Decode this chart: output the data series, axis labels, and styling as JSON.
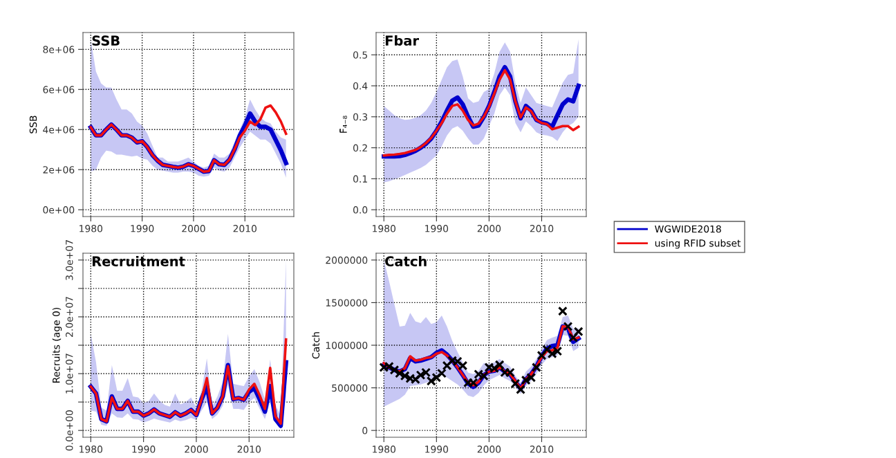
{
  "chart_data": [
    {
      "type": "line",
      "title": "SSB",
      "ylabel": "SSB",
      "x": [
        1980,
        1981,
        1982,
        1983,
        1984,
        1985,
        1986,
        1987,
        1988,
        1989,
        1990,
        1991,
        1992,
        1993,
        1994,
        1995,
        1996,
        1997,
        1998,
        1999,
        2000,
        2001,
        2002,
        2003,
        2004,
        2005,
        2006,
        2007,
        2008,
        2009,
        2010,
        2011,
        2012,
        2013,
        2014,
        2015,
        2016,
        2017,
        2018
      ],
      "xlim": [
        1978.48,
        2019.52
      ],
      "xticks": [
        1980,
        1990,
        2000,
        2010
      ],
      "ylim": [
        -340000,
        8840000
      ],
      "yticks": [
        {
          "value": 0,
          "label": "0e+00"
        },
        {
          "value": 2000000,
          "label": "2e+06"
        },
        {
          "value": 4000000,
          "label": "4e+06"
        },
        {
          "value": 6000000,
          "label": "6e+06"
        },
        {
          "value": 8000000,
          "label": "8e+06"
        }
      ],
      "grid": true,
      "line_style": "solid",
      "legend": false,
      "series": [
        {
          "color": "#0000cc",
          "values": [
            4110000,
            3710000,
            3710000,
            4000000,
            4250000,
            4000000,
            3710000,
            3710000,
            3600000,
            3360000,
            3420000,
            3130000,
            2730000,
            2450000,
            2240000,
            2190000,
            2140000,
            2100000,
            2150000,
            2270000,
            2190000,
            2040000,
            1900000,
            1930000,
            2470000,
            2270000,
            2240000,
            2500000,
            3020000,
            3700000,
            4200000,
            4800000,
            4400000,
            4140000,
            4140000,
            4000000,
            3480000,
            2960000,
            2330000
          ],
          "lower": [
            1900000,
            2000000,
            2600000,
            2950000,
            2900000,
            2750000,
            2750000,
            2700000,
            2650000,
            2700000,
            2550000,
            2500000,
            2200000,
            2000000,
            1950000,
            1900000,
            1850000,
            1850000,
            1900000,
            1900000,
            1850000,
            1700000,
            1650000,
            1700000,
            2100000,
            1950000,
            1900000,
            2100000,
            2600000,
            3100000,
            3500000,
            3900000,
            3700000,
            3500000,
            3500000,
            3300000,
            2800000,
            2300000,
            1600000
          ],
          "upper": [
            8500000,
            6900000,
            6300000,
            6100000,
            6100000,
            5500000,
            5000000,
            5000000,
            4800000,
            4400000,
            4200000,
            3800000,
            3200000,
            2600000,
            2600000,
            2400000,
            2400000,
            2400000,
            2500000,
            2600000,
            2400000,
            2200000,
            2100000,
            2200000,
            2800000,
            2600000,
            2600000,
            2800000,
            3400000,
            4000000,
            4600000,
            5500000,
            5000000,
            4600000,
            4400000,
            4300000,
            3900000,
            3600000,
            3500000
          ]
        },
        {
          "color": "#ee1111",
          "values": [
            4110000,
            3710000,
            3710000,
            4000000,
            4250000,
            4000000,
            3710000,
            3710000,
            3600000,
            3360000,
            3420000,
            3130000,
            2730000,
            2450000,
            2240000,
            2190000,
            2140000,
            2100000,
            2150000,
            2270000,
            2190000,
            2040000,
            1900000,
            1930000,
            2470000,
            2270000,
            2240000,
            2500000,
            3020000,
            3600000,
            3940000,
            4400000,
            4220000,
            4510000,
            5090000,
            5200000,
            4860000,
            4400000,
            3790000
          ]
        }
      ]
    },
    {
      "type": "line",
      "title": "Fbar",
      "ylabel": "F̄₄₋₈",
      "x": [
        1980,
        1981,
        1982,
        1983,
        1984,
        1985,
        1986,
        1987,
        1988,
        1989,
        1990,
        1991,
        1992,
        1993,
        1994,
        1995,
        1996,
        1997,
        1998,
        1999,
        2000,
        2001,
        2002,
        2003,
        2004,
        2005,
        2006,
        2007,
        2008,
        2009,
        2010,
        2011,
        2012,
        2013,
        2014,
        2015,
        2016,
        2017
      ],
      "xlim": [
        1978.52,
        2018.48
      ],
      "xticks": [
        1980,
        1990,
        2000,
        2010
      ],
      "ylim": [
        -0.022,
        0.572
      ],
      "yticks": [
        {
          "value": 0,
          "label": "0.0"
        },
        0.1,
        0.2,
        0.3,
        0.4,
        0.5
      ],
      "grid": true,
      "line_style": "solid",
      "legend": "bottom right",
      "series": [
        {
          "name": "WGWIDE2018",
          "color": "#0000cc",
          "values": [
            0.172,
            0.172,
            0.172,
            0.173,
            0.177,
            0.183,
            0.19,
            0.2,
            0.213,
            0.23,
            0.255,
            0.285,
            0.32,
            0.352,
            0.362,
            0.34,
            0.3,
            0.268,
            0.272,
            0.3,
            0.335,
            0.38,
            0.43,
            0.46,
            0.43,
            0.35,
            0.295,
            0.335,
            0.32,
            0.29,
            0.282,
            0.278,
            0.268,
            0.305,
            0.34,
            0.356,
            0.35,
            0.4
          ],
          "lower": [
            0.088,
            0.092,
            0.098,
            0.105,
            0.112,
            0.12,
            0.127,
            0.135,
            0.145,
            0.16,
            0.175,
            0.205,
            0.24,
            0.262,
            0.27,
            0.255,
            0.23,
            0.21,
            0.21,
            0.23,
            0.27,
            0.31,
            0.37,
            0.395,
            0.37,
            0.28,
            0.25,
            0.285,
            0.27,
            0.25,
            0.242,
            0.24,
            0.235,
            0.222,
            0.25,
            0.27,
            0.28,
            0.3
          ],
          "upper": [
            0.335,
            0.32,
            0.305,
            0.295,
            0.29,
            0.292,
            0.297,
            0.305,
            0.32,
            0.345,
            0.38,
            0.42,
            0.46,
            0.48,
            0.485,
            0.43,
            0.36,
            0.345,
            0.35,
            0.38,
            0.39,
            0.44,
            0.51,
            0.54,
            0.51,
            0.41,
            0.345,
            0.395,
            0.37,
            0.345,
            0.34,
            0.335,
            0.33,
            0.37,
            0.41,
            0.435,
            0.44,
            0.55
          ]
        },
        {
          "name": "using RFID subset",
          "color": "#ee1111",
          "values": [
            0.175,
            0.177,
            0.178,
            0.18,
            0.183,
            0.188,
            0.193,
            0.202,
            0.215,
            0.232,
            0.255,
            0.28,
            0.31,
            0.335,
            0.34,
            0.32,
            0.29,
            0.272,
            0.278,
            0.3,
            0.333,
            0.375,
            0.42,
            0.45,
            0.42,
            0.35,
            0.298,
            0.33,
            0.318,
            0.29,
            0.28,
            0.276,
            0.26,
            0.265,
            0.27,
            0.27,
            0.257,
            0.268
          ]
        }
      ]
    },
    {
      "type": "line",
      "title": "Recruitment",
      "ylabel": "Recruits (age 0)",
      "x": [
        1980,
        1981,
        1982,
        1983,
        1984,
        1985,
        1986,
        1987,
        1988,
        1989,
        1990,
        1991,
        1992,
        1993,
        1994,
        1995,
        1996,
        1997,
        1998,
        1999,
        2000,
        2001,
        2002,
        2003,
        2004,
        2005,
        2006,
        2007,
        2008,
        2009,
        2010,
        2011,
        2012,
        2013,
        2014,
        2015,
        2016,
        2017
      ],
      "xlim": [
        1978.52,
        2018.48
      ],
      "xticks": [
        1980,
        1990,
        2000,
        2010
      ],
      "ylim": [
        -1200000,
        31200000
      ],
      "yticks": [
        {
          "value": 0,
          "label": "0.0e+00"
        },
        {
          "value": 5000000,
          "label": null
        },
        {
          "value": 10000000,
          "label": "1.0e+07"
        },
        {
          "value": 15000000,
          "label": null
        },
        {
          "value": 20000000,
          "label": "2.0e+07"
        },
        {
          "value": 25000000,
          "label": null
        },
        {
          "value": 30000000,
          "label": "3.0e+07"
        }
      ],
      "grid": true,
      "line_style": "solid",
      "legend": false,
      "series": [
        {
          "color": "#0000cc",
          "values": [
            7700000,
            6500000,
            2000000,
            1600000,
            6000000,
            3800000,
            3800000,
            5200000,
            3300000,
            3300000,
            2600000,
            3000000,
            3700000,
            3000000,
            2700000,
            2400000,
            3200000,
            2600000,
            3000000,
            3600000,
            2700000,
            5500000,
            7800000,
            3000000,
            4000000,
            6000000,
            11500000,
            5500000,
            5700000,
            5400000,
            6800000,
            7500000,
            5500000,
            3300000,
            7800000,
            2000000,
            800000,
            12000000
          ],
          "lower": [
            3500000,
            3300000,
            1000000,
            800000,
            3000000,
            2300000,
            2200000,
            3000000,
            2000000,
            1900000,
            1400000,
            1700000,
            2100000,
            1800000,
            1600000,
            1400000,
            1900000,
            1600000,
            1800000,
            2200000,
            1800000,
            3500000,
            5000000,
            2000000,
            2800000,
            4300000,
            8000000,
            3800000,
            3800000,
            3600000,
            5000000,
            5700000,
            3800000,
            2000000,
            5000000,
            1500000,
            400000,
            6000000
          ],
          "upper": [
            17000000,
            12000000,
            4000000,
            3500000,
            11500000,
            7000000,
            7000000,
            9200000,
            6000000,
            5800000,
            4800000,
            5200000,
            6500000,
            5300000,
            4500000,
            4200000,
            6500000,
            4600000,
            5000000,
            5800000,
            4000000,
            7000000,
            12700000,
            4200000,
            6000000,
            8500000,
            17000000,
            8200000,
            8000000,
            7800000,
            9500000,
            10800000,
            8500000,
            5500000,
            12500000,
            4500000,
            2500000,
            30000000
          ]
        },
        {
          "color": "#ee1111",
          "values": [
            7700000,
            6500000,
            2000000,
            1600000,
            5800000,
            3800000,
            3800000,
            5200000,
            3300000,
            3300000,
            2600000,
            3000000,
            3700000,
            3000000,
            2700000,
            2400000,
            3200000,
            2600000,
            3000000,
            3600000,
            2700000,
            5500000,
            9200000,
            3000000,
            4000000,
            6000000,
            11300000,
            5500000,
            5700000,
            5400000,
            7200000,
            8200000,
            6200000,
            3800000,
            11000000,
            2500000,
            1200000,
            16000000
          ]
        }
      ]
    },
    {
      "type": "line",
      "title": "Catch",
      "ylabel": "Catch",
      "x": [
        1980,
        1981,
        1982,
        1983,
        1984,
        1985,
        1986,
        1987,
        1988,
        1989,
        1990,
        1991,
        1992,
        1993,
        1994,
        1995,
        1996,
        1997,
        1998,
        1999,
        2000,
        2001,
        2002,
        2003,
        2004,
        2005,
        2006,
        2007,
        2008,
        2009,
        2010,
        2011,
        2012,
        2013,
        2014,
        2015,
        2016,
        2017
      ],
      "xlim": [
        1978.52,
        2018.48
      ],
      "xticks": [
        1980,
        1990,
        2000,
        2010
      ],
      "ylim": [
        -80000,
        2080000
      ],
      "yticks": [
        0,
        500000,
        1000000,
        1500000,
        2000000
      ],
      "grid": true,
      "line_style": "solid",
      "legend": false,
      "series": [
        {
          "color": "#0000cc",
          "values": [
            770000,
            740000,
            710000,
            690000,
            720000,
            850000,
            810000,
            820000,
            840000,
            860000,
            910000,
            940000,
            890000,
            820000,
            740000,
            650000,
            550000,
            510000,
            560000,
            650000,
            690000,
            700000,
            740000,
            690000,
            660000,
            570000,
            490000,
            600000,
            660000,
            750000,
            870000,
            960000,
            990000,
            1000000,
            1220000,
            1200000,
            1040000,
            1080000
          ],
          "lower": [
            280000,
            310000,
            340000,
            370000,
            420000,
            520000,
            530000,
            540000,
            560000,
            580000,
            620000,
            650000,
            620000,
            580000,
            540000,
            480000,
            410000,
            390000,
            440000,
            530000,
            590000,
            620000,
            650000,
            610000,
            580000,
            510000,
            430000,
            520000,
            580000,
            660000,
            770000,
            840000,
            860000,
            880000,
            1120000,
            1110000,
            930000,
            970000
          ],
          "upper": [
            2000000,
            1750000,
            1480000,
            1220000,
            1230000,
            1380000,
            1280000,
            1260000,
            1330000,
            1250000,
            1270000,
            1350000,
            1220000,
            1050000,
            920000,
            800000,
            680000,
            660000,
            700000,
            790000,
            780000,
            800000,
            840000,
            790000,
            750000,
            640000,
            560000,
            690000,
            750000,
            840000,
            960000,
            1060000,
            1090000,
            1110000,
            1330000,
            1350000,
            1190000,
            1200000
          ]
        },
        {
          "color": "#ee1111",
          "values": [
            790000,
            740000,
            710000,
            690000,
            730000,
            870000,
            820000,
            830000,
            850000,
            860000,
            900000,
            920000,
            880000,
            820000,
            740000,
            650000,
            560000,
            530000,
            570000,
            650000,
            690000,
            700000,
            740000,
            690000,
            660000,
            580000,
            490000,
            600000,
            660000,
            750000,
            860000,
            930000,
            940000,
            970000,
            1220000,
            1220000,
            1070000,
            1090000
          ]
        },
        {
          "type": "scatter",
          "marker": "cross",
          "color": "#000000",
          "values": [
            740000,
            750000,
            710000,
            670000,
            640000,
            610000,
            600000,
            650000,
            680000,
            580000,
            620000,
            670000,
            760000,
            820000,
            810000,
            760000,
            560000,
            560000,
            660000,
            640000,
            740000,
            730000,
            770000,
            680000,
            680000,
            550000,
            480000,
            590000,
            620000,
            740000,
            880000,
            950000,
            900000,
            930000,
            1400000,
            1220000,
            1090000,
            1160000
          ]
        }
      ]
    }
  ]
}
